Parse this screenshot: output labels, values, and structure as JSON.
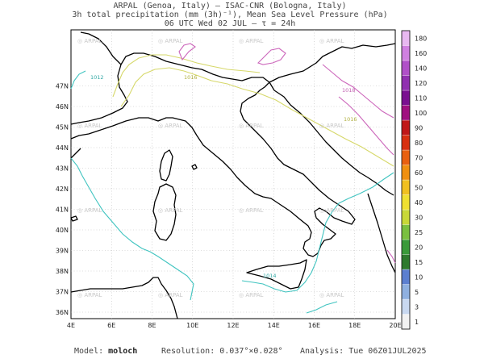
{
  "header": {
    "line1": "ARPAL (Genoa, Italy)  —  ISAC-CNR (Bologna, Italy)",
    "line2": "3h total precipitation (mm (3h)⁻¹), Mean Sea Level Pressure (hPa)",
    "line3": "06 UTC Wed 02 JUL  —  τ = 24h"
  },
  "map": {
    "lon_labels": [
      "4E",
      "6E",
      "8E",
      "10E",
      "12E",
      "14E",
      "16E",
      "18E",
      "20E"
    ],
    "lat_labels": [
      "36N",
      "37N",
      "38N",
      "39N",
      "40N",
      "41N",
      "42N",
      "43N",
      "44N",
      "45N",
      "46N",
      "47N"
    ],
    "watermark": "ARPAL",
    "isobars": [
      {
        "label": "1016",
        "color": "#d6d86a"
      },
      {
        "label": "1018",
        "color": "#d6d86a"
      },
      {
        "label": "1016",
        "color": "#cc66bb"
      },
      {
        "label": "1014",
        "color": "#40c4c0"
      },
      {
        "label": "1012",
        "color": "#40c4c0"
      }
    ]
  },
  "colorbar": {
    "levels": [
      "1",
      "3",
      "5",
      "10",
      "15",
      "20",
      "25",
      "30",
      "40",
      "50",
      "60",
      "70",
      "80",
      "90",
      "100",
      "110",
      "120",
      "140",
      "160",
      "180"
    ],
    "colors": [
      "#f2f2f2",
      "#c8d8f0",
      "#8fb0e0",
      "#5c7fd0",
      "#2e7a2e",
      "#3a9a3a",
      "#7ac040",
      "#c8d838",
      "#f0e030",
      "#f0c020",
      "#f09010",
      "#e86010",
      "#d83010",
      "#c01818",
      "#a01080",
      "#7a1090",
      "#9030b0",
      "#b050c8",
      "#d080e0",
      "#e8b8f0"
    ]
  },
  "footer": {
    "model_label": "Model:",
    "model_value": "moloch",
    "resolution_label": "Resolution:",
    "resolution_value": "0.037°×0.028°",
    "analysis_label": "Analysis:",
    "analysis_value": "Tue 06Z01JUL2025"
  }
}
